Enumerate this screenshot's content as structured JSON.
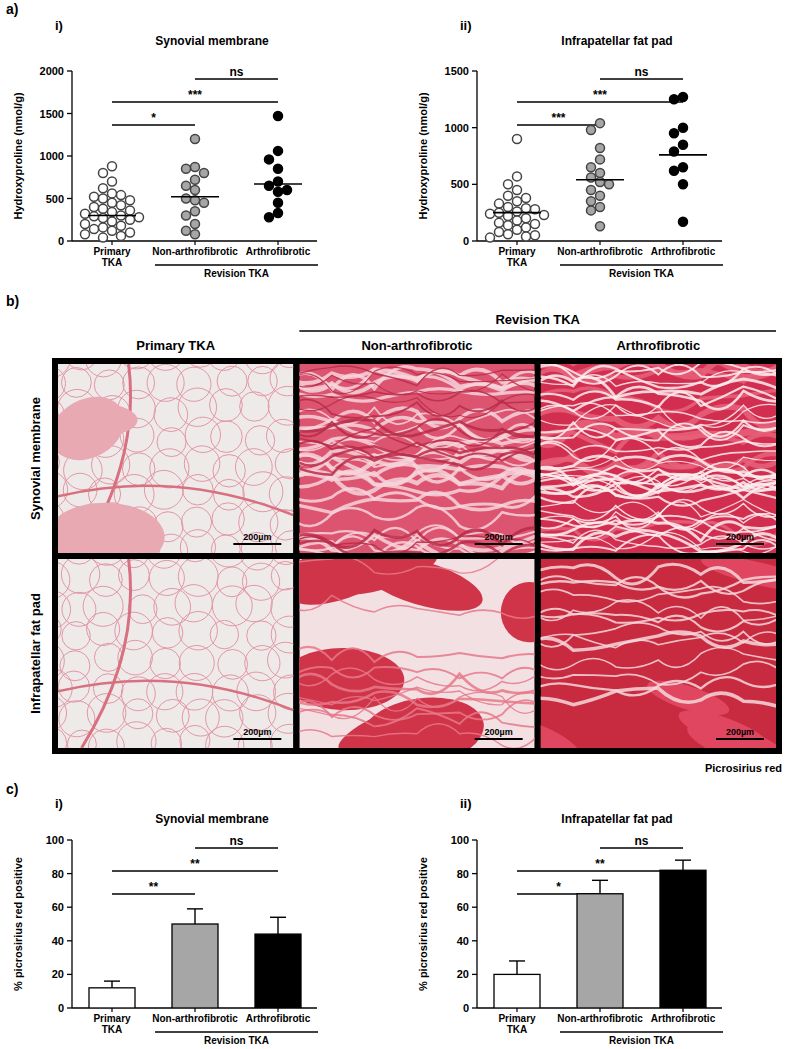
{
  "chart_data": [
    {
      "type": "scatter",
      "subtitle": "i)",
      "title": "Synovial membrane",
      "y_label": "Hydroxyproline (nmol/g)",
      "categories": [
        "Primary TKA",
        "Non-arthrofibrotic",
        "Arthrofibrotic"
      ],
      "group_label": "Revision TKA",
      "values": [
        [
          880,
          800,
          700,
          620,
          560,
          540,
          520,
          500,
          480,
          450,
          420,
          400,
          380,
          360,
          340,
          320,
          300,
          290,
          280,
          270,
          250,
          230,
          200,
          180,
          160,
          140,
          120,
          100,
          80,
          60,
          40
        ],
        [
          1200,
          870,
          850,
          800,
          720,
          650,
          600,
          500,
          480,
          450,
          350,
          300,
          200,
          120,
          80
        ],
        [
          1470,
          1060,
          960,
          850,
          700,
          650,
          600,
          580,
          450,
          330,
          280
        ]
      ],
      "means": [
        300,
        520,
        670
      ],
      "colors": [
        "#ffffff",
        "#a6a6a6",
        "#000000"
      ],
      "marker": "circle",
      "ylim": [
        0,
        2000
      ],
      "yticks": [
        0,
        500,
        1000,
        1500,
        2000
      ],
      "comparisons": [
        {
          "from": "Non-arthrofibrotic",
          "to": "Arthrofibrotic",
          "label": "ns"
        },
        {
          "from": "Primary TKA",
          "to": "Arthrofibrotic",
          "label": "***"
        },
        {
          "from": "Primary TKA",
          "to": "Non-arthrofibrotic",
          "label": "*"
        }
      ]
    },
    {
      "type": "scatter",
      "subtitle": "ii)",
      "title": "Infrapatellar fat pad",
      "y_label": "Hydroxyproline (nmol/g)",
      "categories": [
        "Primary TKA",
        "Non-arthrofibrotic",
        "Arthrofibrotic"
      ],
      "group_label": "Revision TKA",
      "values": [
        [
          900,
          570,
          500,
          450,
          400,
          380,
          350,
          330,
          300,
          290,
          280,
          260,
          250,
          240,
          230,
          220,
          200,
          180,
          160,
          150,
          140,
          120,
          100,
          80,
          60,
          50,
          40,
          30
        ],
        [
          1040,
          980,
          820,
          720,
          650,
          600,
          560,
          520,
          500,
          450,
          400,
          350,
          300,
          270,
          130
        ],
        [
          1270,
          1250,
          1000,
          950,
          850,
          790,
          650,
          620,
          500,
          170
        ]
      ],
      "means": [
        250,
        540,
        760
      ],
      "colors": [
        "#ffffff",
        "#a6a6a6",
        "#000000"
      ],
      "marker": "circle",
      "ylim": [
        0,
        1500
      ],
      "yticks": [
        0,
        500,
        1000,
        1500
      ],
      "comparisons": [
        {
          "from": "Non-arthrofibrotic",
          "to": "Arthrofibrotic",
          "label": "ns"
        },
        {
          "from": "Primary TKA",
          "to": "Arthrofibrotic",
          "label": "***"
        },
        {
          "from": "Primary TKA",
          "to": "Non-arthrofibrotic",
          "label": "***"
        }
      ]
    },
    {
      "type": "bar",
      "subtitle": "i)",
      "title": "Synovial membrane",
      "y_label": "% picrosirius red positive",
      "categories": [
        "Primary TKA",
        "Non-arthrofibrotic",
        "Arthrofibrotic"
      ],
      "group_label": "Revision TKA",
      "values": [
        12,
        50,
        44
      ],
      "errors": [
        4,
        9,
        10
      ],
      "colors": [
        "#ffffff",
        "#a6a6a6",
        "#000000"
      ],
      "ylim": [
        0,
        100
      ],
      "yticks": [
        0,
        20,
        40,
        60,
        80,
        100
      ],
      "comparisons": [
        {
          "from": "Non-arthrofibrotic",
          "to": "Arthrofibrotic",
          "label": "ns"
        },
        {
          "from": "Primary TKA",
          "to": "Arthrofibrotic",
          "label": "**"
        },
        {
          "from": "Primary TKA",
          "to": "Non-arthrofibrotic",
          "label": "**"
        }
      ]
    },
    {
      "type": "bar",
      "subtitle": "ii)",
      "title": "Infrapatellar fat pad",
      "y_label": "% picrosirius red positive",
      "categories": [
        "Primary TKA",
        "Non-arthrofibrotic",
        "Arthrofibrotic"
      ],
      "group_label": "Revision TKA",
      "values": [
        20,
        68,
        82
      ],
      "errors": [
        8,
        8,
        6
      ],
      "colors": [
        "#ffffff",
        "#a6a6a6",
        "#000000"
      ],
      "ylim": [
        0,
        100
      ],
      "yticks": [
        0,
        20,
        40,
        60,
        80,
        100
      ],
      "comparisons": [
        {
          "from": "Non-arthrofibrotic",
          "to": "Arthrofibrotic",
          "label": "ns"
        },
        {
          "from": "Primary TKA",
          "to": "Arthrofibrotic",
          "label": "**"
        },
        {
          "from": "Primary TKA",
          "to": "Non-arthrofibrotic",
          "label": "*"
        }
      ]
    }
  ],
  "figure": {
    "panel_labels": [
      "a)",
      "b)",
      "c)"
    ],
    "histology": {
      "group_label": "Revision TKA",
      "columns": [
        "Primary TKA",
        "Non-arthrofibrotic",
        "Arthrofibrotic"
      ],
      "rows": [
        "Synovial membrane",
        "Infrapatellar fat pad"
      ],
      "scale_bar": "200µm",
      "stain": "Picrosirius red"
    }
  }
}
